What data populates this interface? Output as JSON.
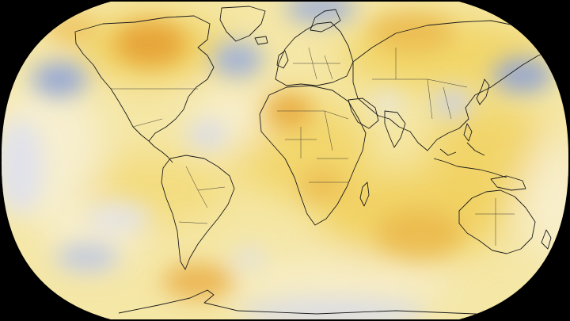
{
  "map": {
    "projection": "Robinson",
    "background_color": "#000000",
    "ocean_base_color": "#f5e7a6",
    "palette": {
      "cold": "#8ea2d6",
      "cool": "#dcdff2",
      "neutral": "#f7f0d6",
      "warm": "#f1d463",
      "hot": "#e6a035"
    },
    "land_outline_color": "#1b1b1b",
    "regions": [
      {
        "name": "north-america-warm-anomaly",
        "level": "hot"
      },
      {
        "name": "north-africa-warm-anomaly",
        "level": "hot"
      },
      {
        "name": "siberia-warm-anomaly",
        "level": "warm"
      },
      {
        "name": "north-atlantic-cool-anomaly",
        "level": "cold"
      },
      {
        "name": "north-pacific-cool-anomaly",
        "level": "cold"
      },
      {
        "name": "east-asia-cool-anomaly",
        "level": "cool"
      },
      {
        "name": "southern-ocean-warm-anomaly",
        "level": "hot"
      },
      {
        "name": "australia-warm-anomaly",
        "level": "warm"
      }
    ]
  }
}
